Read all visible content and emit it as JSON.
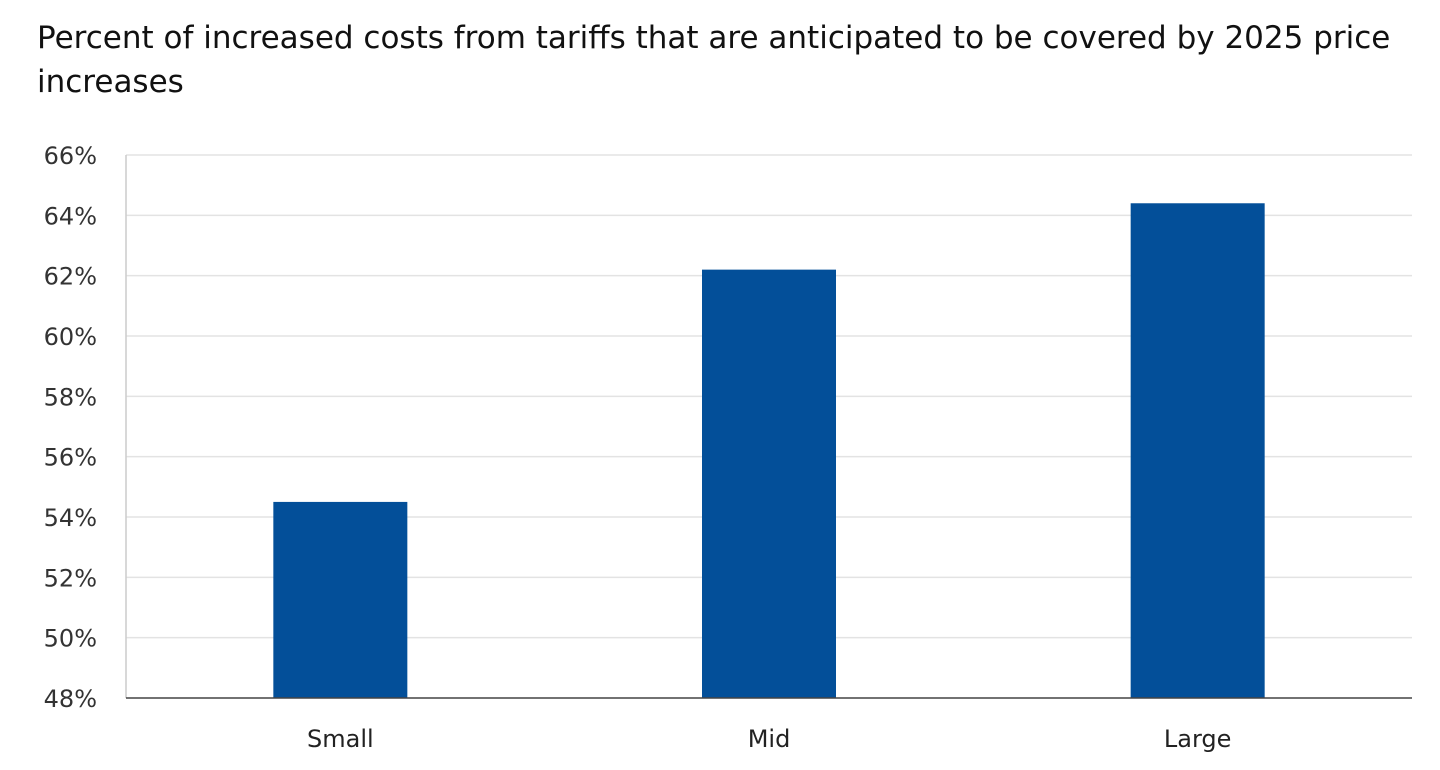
{
  "chart_data": {
    "type": "bar",
    "title": "Percent of increased costs from tariffs that are anticipated to be covered by 2025 price increases",
    "xlabel": "",
    "ylabel": "",
    "categories": [
      "Small",
      "Mid",
      "Large"
    ],
    "values": [
      54.5,
      62.2,
      64.4
    ],
    "ylim": [
      48,
      66
    ],
    "yticks": [
      "48%",
      "50%",
      "52%",
      "54%",
      "56%",
      "58%",
      "60%",
      "62%",
      "64%",
      "66%"
    ],
    "grid": true,
    "legend": "none",
    "bar_color": "#034f99",
    "grid_color": "#e3e3e3"
  }
}
